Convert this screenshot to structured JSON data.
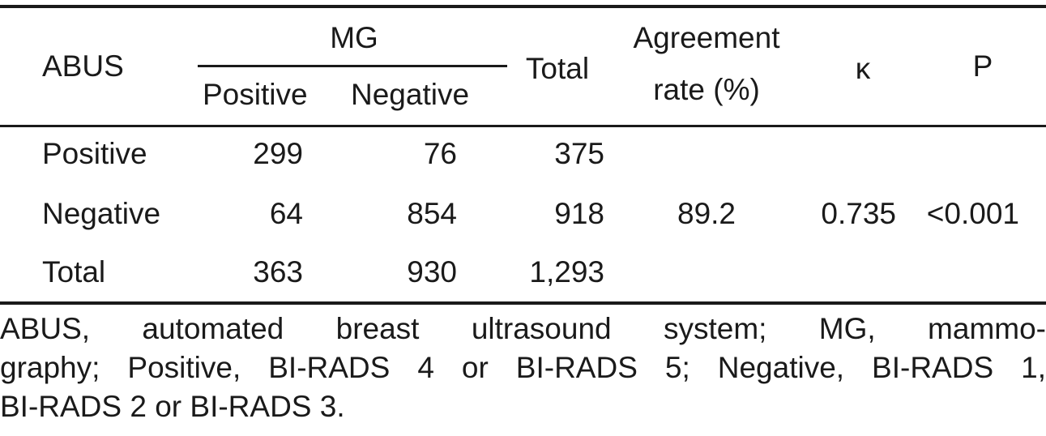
{
  "table": {
    "headers": {
      "abus": "ABUS",
      "mg": "MG",
      "mg_positive": "Positive",
      "mg_negative": "Negative",
      "total": "Total",
      "agreement_line1": "Agreement",
      "agreement_line2": "rate (%)",
      "kappa": "κ",
      "p": "P"
    },
    "rows": [
      {
        "label": "Positive",
        "mg_positive": "299",
        "mg_negative": "76",
        "total": "375"
      },
      {
        "label": "Negative",
        "mg_positive": "64",
        "mg_negative": "854",
        "total": "918"
      },
      {
        "label": "Total",
        "mg_positive": "363",
        "mg_negative": "930",
        "total": "1,293"
      }
    ],
    "agreement_rate": "89.2",
    "kappa": "0.735",
    "p_value": "<0.001"
  },
  "footnote": {
    "line1": "ABUS, automated breast ultrasound system; MG, mammo-",
    "line2": "graphy; Positive, BI-RADS 4 or BI-RADS 5; Negative, BI-RADS 1,",
    "line3": "BI-RADS 2 or BI-RADS 3."
  }
}
